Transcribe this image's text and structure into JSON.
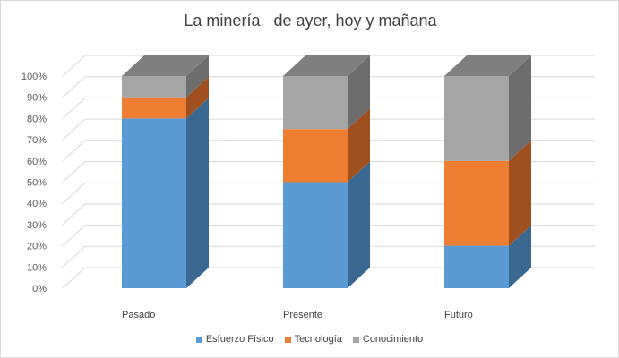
{
  "chart_data": {
    "type": "bar",
    "stacked": true,
    "three_d": true,
    "title": "La minería   de ayer, hoy y mañana",
    "categories": [
      "Pasado",
      "Presente",
      "Futuro"
    ],
    "series": [
      {
        "name": "Esfuerzo Físico",
        "values": [
          80,
          50,
          20
        ],
        "color": "#5b9bd5",
        "side_color": "#3a6891"
      },
      {
        "name": "Tecnología",
        "values": [
          10,
          25,
          40
        ],
        "color": "#ed7d31",
        "side_color": "#a04f1e"
      },
      {
        "name": "Conocimiento",
        "values": [
          10,
          25,
          40
        ],
        "color": "#a5a5a5",
        "side_color": "#6d6d6d"
      }
    ],
    "top_color": "#7f7f7f",
    "ylim": [
      0,
      100
    ],
    "yticks": [
      "0%",
      "10%",
      "20%",
      "30%",
      "40%",
      "50%",
      "60%",
      "70%",
      "80%",
      "90%",
      "100%"
    ],
    "grid": true,
    "legend_position": "bottom"
  }
}
